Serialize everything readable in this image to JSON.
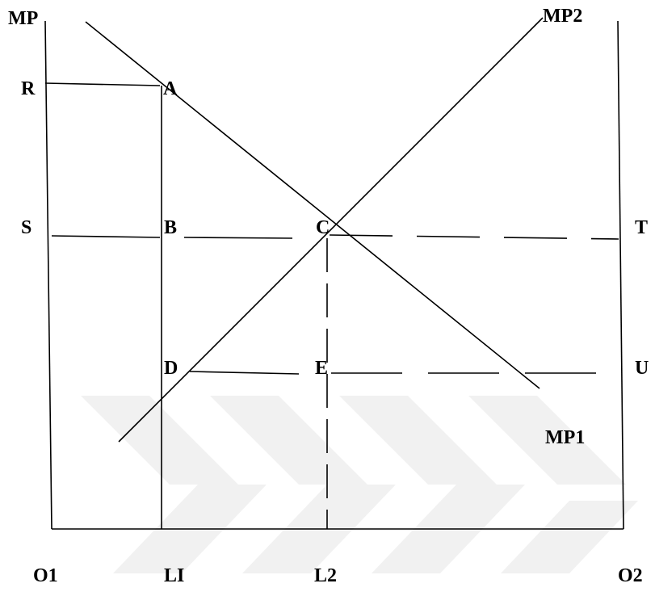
{
  "colors": {
    "line": "#000000",
    "watermark": "#f1f1f1",
    "background": "#ffffff"
  },
  "labels": {
    "mp": "MP",
    "mp2": "MP2",
    "mp1": "MP1",
    "r": "R",
    "a": "A",
    "s": "S",
    "b": "B",
    "c": "C",
    "t": "T",
    "d": "D",
    "e": "E",
    "u": "U",
    "o1": "O1",
    "l1": "LI",
    "l2": "L2",
    "o2": "O2"
  }
}
